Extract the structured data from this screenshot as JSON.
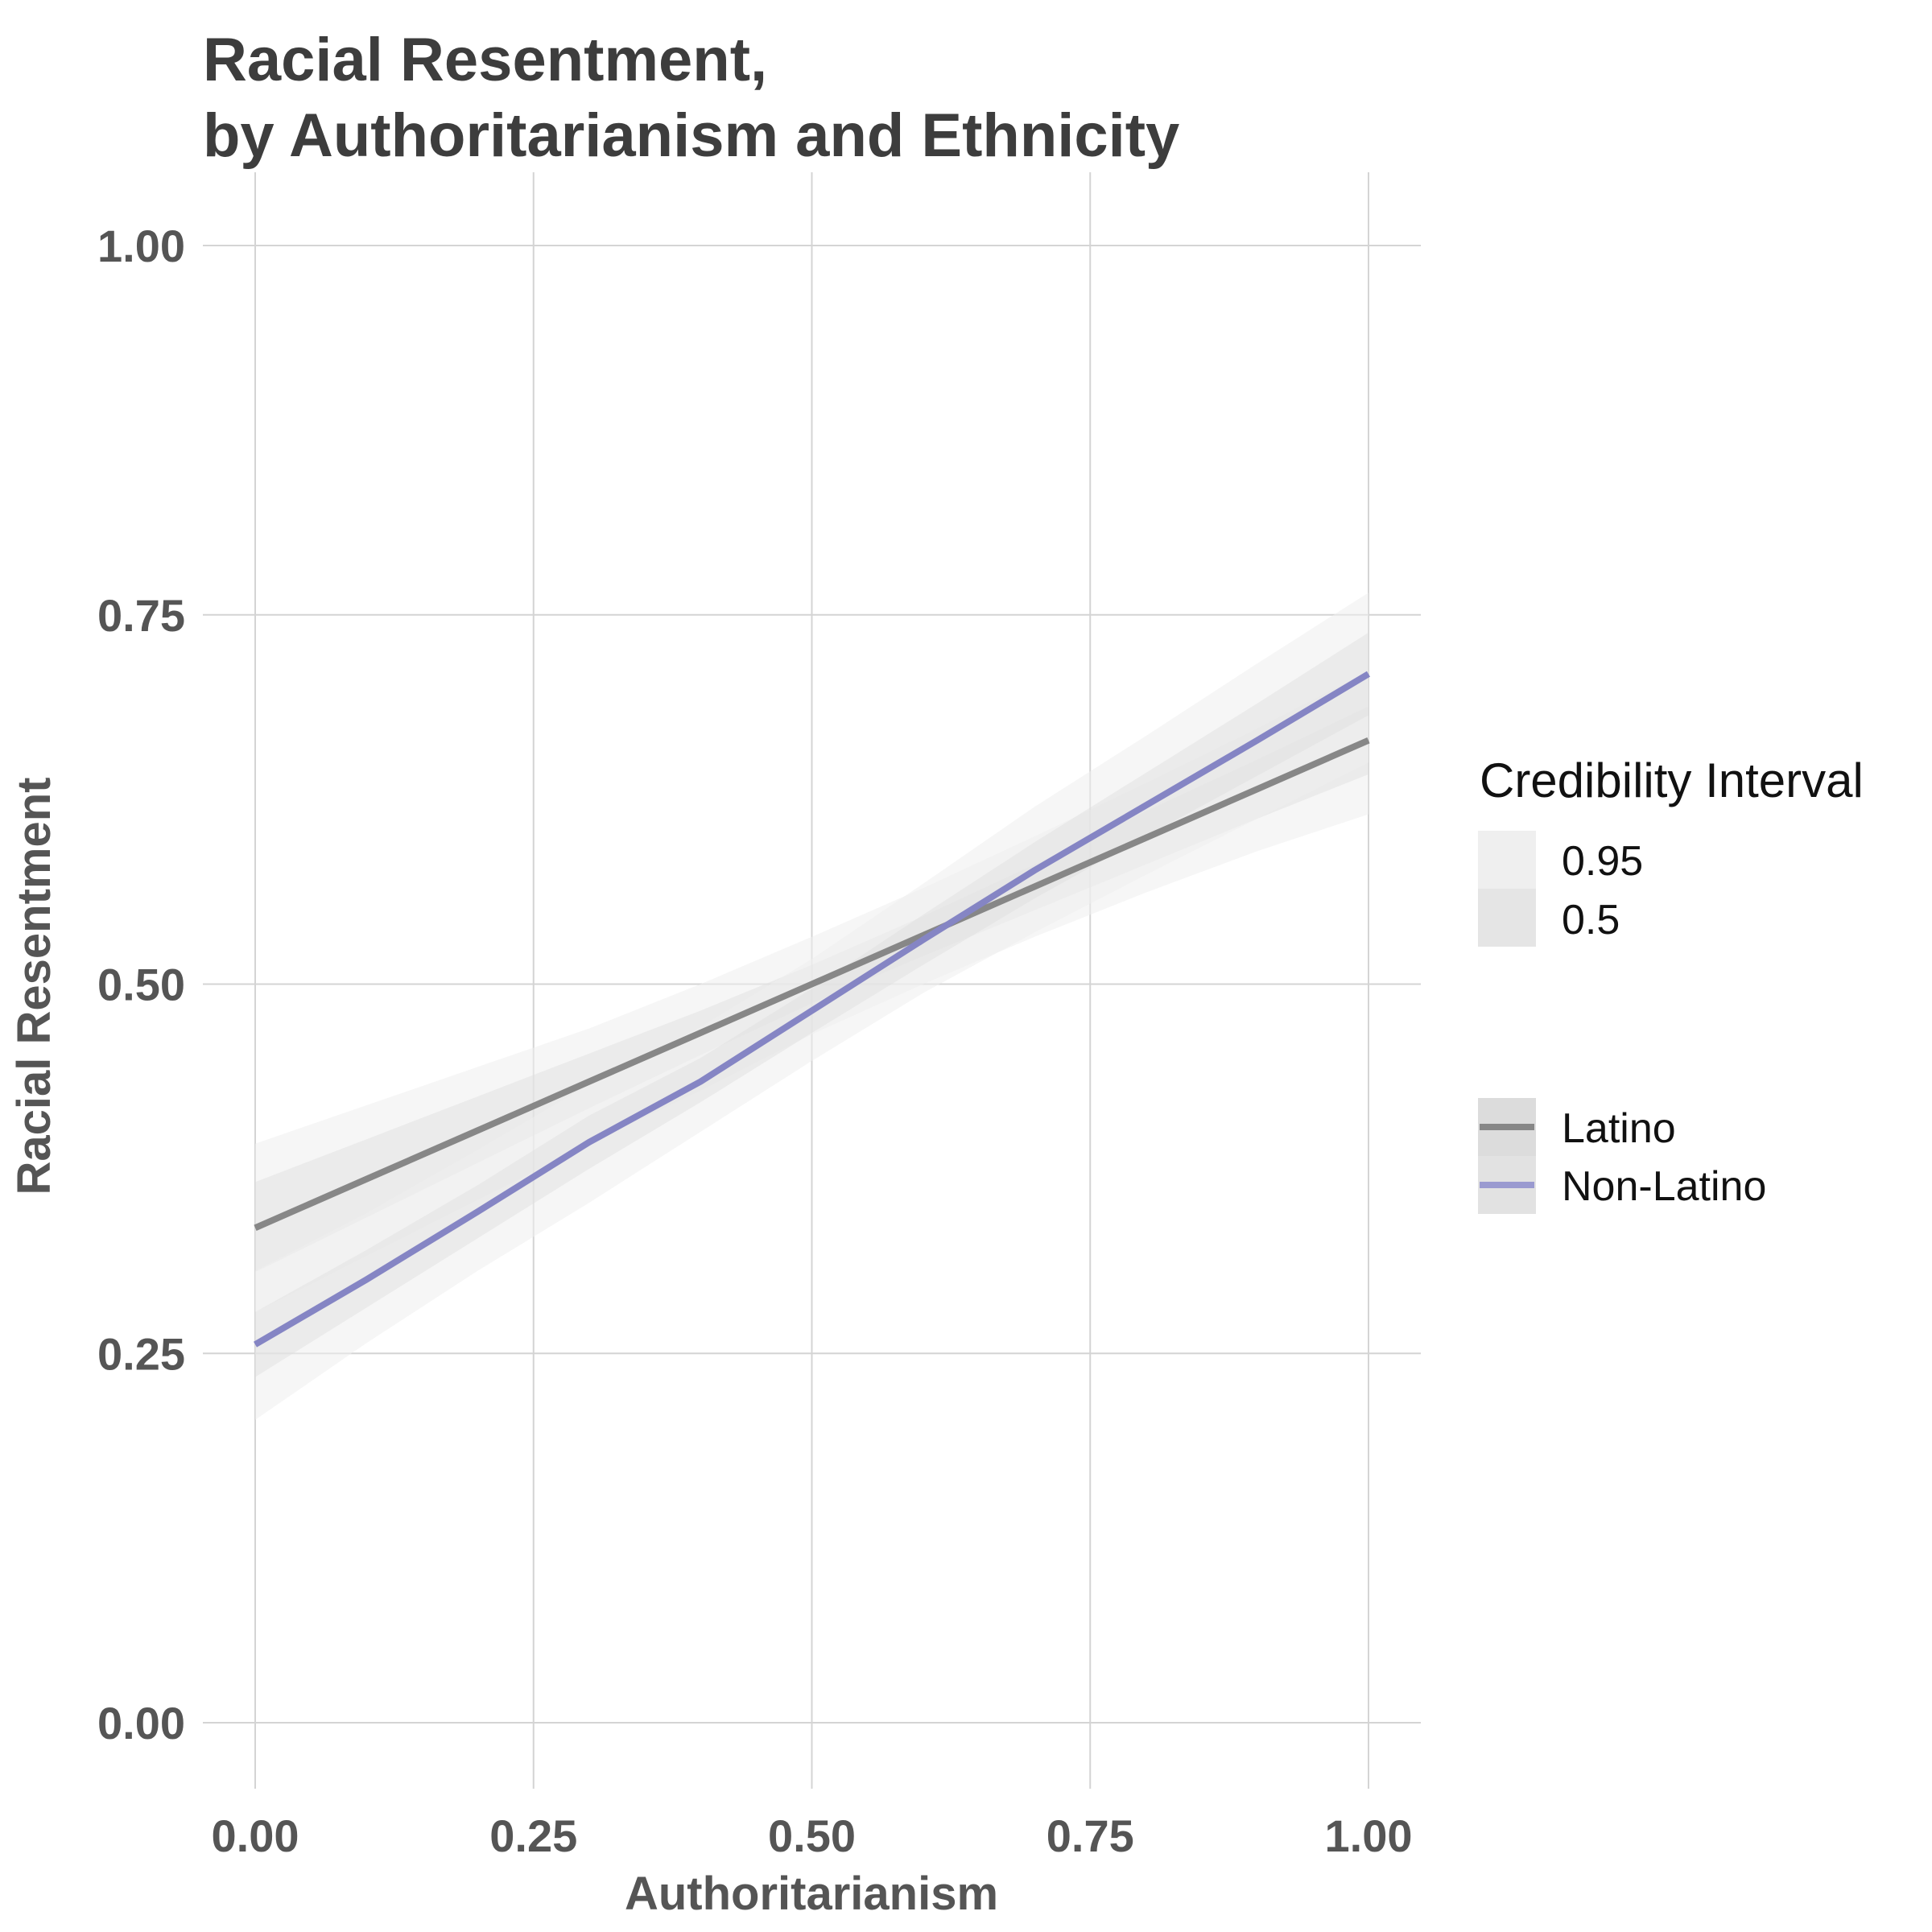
{
  "chart_data": {
    "type": "line",
    "title": "Racial Resentment,\nby Authoritarianism and Ethnicity",
    "title_lines": [
      "Racial Resentment,",
      "by Authoritarianism and Ethnicity"
    ],
    "xlabel": "Authoritarianism",
    "ylabel": "Racial Resentment",
    "xlim": [
      -0.05,
      1.05
    ],
    "ylim": [
      -0.05,
      1.05
    ],
    "x_ticks": [
      0.0,
      0.25,
      0.5,
      0.75,
      1.0
    ],
    "x_tick_labels": [
      "0.00",
      "0.25",
      "0.50",
      "0.75",
      "1.00"
    ],
    "y_ticks": [
      0.0,
      0.25,
      0.5,
      0.75,
      1.0
    ],
    "y_tick_labels": [
      "0.00",
      "0.25",
      "0.50",
      "0.75",
      "1.00"
    ],
    "grid": true,
    "legend_position": "right",
    "series": [
      {
        "name": "Latino",
        "color": "#878787",
        "x": [
          0.0,
          0.1,
          0.2,
          0.3,
          0.4,
          0.5,
          0.6,
          0.7,
          0.8,
          0.9,
          1.0
        ],
        "y": [
          0.335,
          0.368,
          0.401,
          0.434,
          0.467,
          0.5,
          0.533,
          0.566,
          0.599,
          0.632,
          0.665
        ],
        "ci50_low": [
          0.305,
          0.342,
          0.379,
          0.416,
          0.452,
          0.487,
          0.519,
          0.55,
          0.581,
          0.612,
          0.642
        ],
        "ci50_high": [
          0.366,
          0.395,
          0.424,
          0.453,
          0.482,
          0.513,
          0.546,
          0.581,
          0.617,
          0.652,
          0.688
        ],
        "ci95_low": [
          0.278,
          0.316,
          0.354,
          0.392,
          0.428,
          0.466,
          0.5,
          0.532,
          0.562,
          0.59,
          0.615
        ],
        "ci95_high": [
          0.392,
          0.418,
          0.444,
          0.47,
          0.5,
          0.532,
          0.565,
          0.6,
          0.636,
          0.673,
          0.712
        ]
      },
      {
        "name": "Non-Latino",
        "color": "#8585c4",
        "x": [
          0.0,
          0.1,
          0.2,
          0.3,
          0.4,
          0.5,
          0.6,
          0.7,
          0.8,
          0.9,
          1.0
        ],
        "y": [
          0.256,
          0.3,
          0.346,
          0.393,
          0.434,
          0.482,
          0.53,
          0.577,
          0.621,
          0.665,
          0.71
        ],
        "ci50_low": [
          0.234,
          0.281,
          0.328,
          0.375,
          0.42,
          0.467,
          0.513,
          0.558,
          0.6,
          0.641,
          0.682
        ],
        "ci50_high": [
          0.278,
          0.32,
          0.364,
          0.411,
          0.45,
          0.497,
          0.547,
          0.596,
          0.643,
          0.69,
          0.738
        ],
        "ci95_low": [
          0.205,
          0.257,
          0.306,
          0.352,
          0.4,
          0.448,
          0.494,
          0.535,
          0.574,
          0.612,
          0.65
        ],
        "ci95_high": [
          0.306,
          0.345,
          0.388,
          0.432,
          0.471,
          0.517,
          0.568,
          0.62,
          0.668,
          0.717,
          0.765
        ]
      }
    ],
    "legend": {
      "ci_title": "Credibility Interval",
      "ci_levels": [
        "0.95",
        "0.5"
      ],
      "series_labels": [
        "Latino",
        "Non-Latino"
      ]
    }
  },
  "colors": {
    "band95": "#efefef",
    "band50": "#dedede",
    "grid": "#d4d4d4"
  }
}
